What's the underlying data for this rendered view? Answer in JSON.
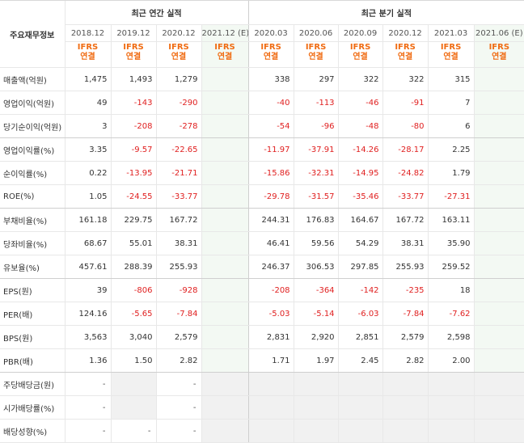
{
  "headers": {
    "row_label": "주요재무정보",
    "annual_group": "최근 연간 실적",
    "quarterly_group": "최근 분기 실적",
    "annual_periods": [
      "2018.12",
      "2019.12",
      "2020.12",
      "2021.12 (E)"
    ],
    "quarterly_periods": [
      "2020.03",
      "2020.06",
      "2020.09",
      "2020.12",
      "2021.03",
      "2021.06 (E)"
    ],
    "ifrs_line1": "IFRS",
    "ifrs_line2": "연결"
  },
  "rows": [
    {
      "label": "매출액(억원)",
      "annual": [
        "1,475",
        "1,493",
        "1,279",
        ""
      ],
      "quarterly": [
        "338",
        "297",
        "322",
        "322",
        "315",
        ""
      ]
    },
    {
      "label": "영업이익(억원)",
      "annual": [
        "49",
        "-143",
        "-290",
        ""
      ],
      "quarterly": [
        "-40",
        "-113",
        "-46",
        "-91",
        "7",
        ""
      ]
    },
    {
      "label": "당기순이익(억원)",
      "annual": [
        "3",
        "-208",
        "-278",
        ""
      ],
      "quarterly": [
        "-54",
        "-96",
        "-48",
        "-80",
        "6",
        ""
      ]
    },
    {
      "label": "영업이익률(%)",
      "annual": [
        "3.35",
        "-9.57",
        "-22.65",
        ""
      ],
      "quarterly": [
        "-11.97",
        "-37.91",
        "-14.26",
        "-28.17",
        "2.25",
        ""
      ]
    },
    {
      "label": "순이익률(%)",
      "annual": [
        "0.22",
        "-13.95",
        "-21.71",
        ""
      ],
      "quarterly": [
        "-15.86",
        "-32.31",
        "-14.95",
        "-24.82",
        "1.79",
        ""
      ]
    },
    {
      "label": "ROE(%)",
      "annual": [
        "1.05",
        "-24.55",
        "-33.77",
        ""
      ],
      "quarterly": [
        "-29.78",
        "-31.57",
        "-35.46",
        "-33.77",
        "-27.31",
        ""
      ]
    },
    {
      "label": "부채비율(%)",
      "annual": [
        "161.18",
        "229.75",
        "167.72",
        ""
      ],
      "quarterly": [
        "244.31",
        "176.83",
        "164.67",
        "167.72",
        "163.11",
        ""
      ]
    },
    {
      "label": "당좌비율(%)",
      "annual": [
        "68.67",
        "55.01",
        "38.31",
        ""
      ],
      "quarterly": [
        "46.41",
        "59.56",
        "54.29",
        "38.31",
        "35.90",
        ""
      ]
    },
    {
      "label": "유보율(%)",
      "annual": [
        "457.61",
        "288.39",
        "255.93",
        ""
      ],
      "quarterly": [
        "246.37",
        "306.53",
        "297.85",
        "255.93",
        "259.52",
        ""
      ]
    },
    {
      "label": "EPS(원)",
      "annual": [
        "39",
        "-806",
        "-928",
        ""
      ],
      "quarterly": [
        "-208",
        "-364",
        "-142",
        "-235",
        "18",
        ""
      ]
    },
    {
      "label": "PER(배)",
      "annual": [
        "124.16",
        "-5.65",
        "-7.84",
        ""
      ],
      "quarterly": [
        "-5.03",
        "-5.14",
        "-6.03",
        "-7.84",
        "-7.62",
        ""
      ]
    },
    {
      "label": "BPS(원)",
      "annual": [
        "3,563",
        "3,040",
        "2,579",
        ""
      ],
      "quarterly": [
        "2,831",
        "2,920",
        "2,851",
        "2,579",
        "2,598",
        ""
      ]
    },
    {
      "label": "PBR(배)",
      "annual": [
        "1.36",
        "1.50",
        "2.82",
        ""
      ],
      "quarterly": [
        "1.71",
        "1.97",
        "2.45",
        "2.82",
        "2.00",
        ""
      ]
    },
    {
      "label": "주당배당금(원)",
      "annual": [
        "-",
        "",
        "-",
        ""
      ],
      "quarterly": [
        "",
        "",
        "",
        "",
        "",
        ""
      ]
    },
    {
      "label": "시가배당률(%)",
      "annual": [
        "-",
        "",
        "-",
        ""
      ],
      "quarterly": [
        "",
        "",
        "",
        "",
        "",
        ""
      ]
    },
    {
      "label": "배당성향(%)",
      "annual": [
        "-",
        "-",
        "-",
        ""
      ],
      "quarterly": [
        "",
        "",
        "",
        "",
        "",
        ""
      ]
    }
  ],
  "colors": {
    "negative": "#e02020",
    "ifrs": "#f06c13",
    "estimate_bg": "#f3f9f3",
    "empty_bg": "#f1f1f1"
  }
}
